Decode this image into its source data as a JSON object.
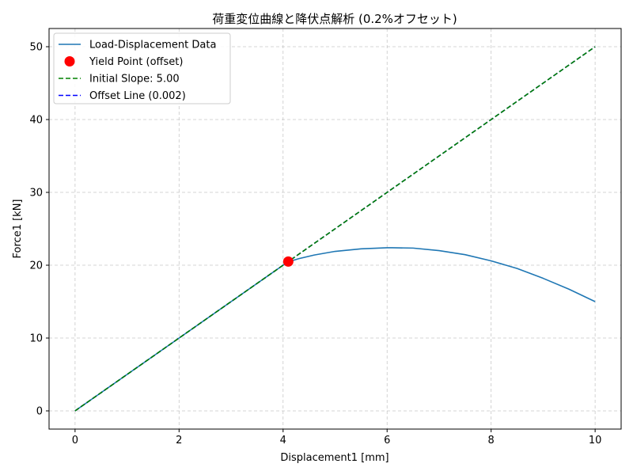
{
  "chart_data": {
    "type": "line",
    "title": "荷重変位曲線と降伏点解析 (0.2%オフセット)",
    "xlabel": "Displacement1 [mm]",
    "ylabel": "Force1 [kN]",
    "xlim": [
      -0.5,
      10.5
    ],
    "ylim": [
      -2.5,
      52.5
    ],
    "xticks": [
      0,
      2,
      4,
      6,
      8,
      10
    ],
    "yticks": [
      0,
      10,
      20,
      30,
      40,
      50
    ],
    "grid": true,
    "legend_position": "top-left",
    "series": [
      {
        "name": "Load-Displacement Data",
        "kind": "line",
        "color": "#1f77b4",
        "style": "solid",
        "x": [
          0,
          0.5,
          1,
          1.5,
          2,
          2.5,
          3,
          3.5,
          4,
          4.1,
          4.3,
          4.6,
          5,
          5.5,
          6,
          6.1,
          6.5,
          7,
          7.5,
          8,
          8.5,
          9,
          9.5,
          10
        ],
        "y": [
          0,
          2.5,
          5,
          7.5,
          10,
          12.5,
          15,
          17.5,
          20,
          20.45,
          20.9,
          21.4,
          21.9,
          22.25,
          22.4,
          22.4,
          22.35,
          22.0,
          21.45,
          20.6,
          19.55,
          18.2,
          16.7,
          15.0
        ]
      },
      {
        "name": "Yield Point (offset)",
        "kind": "point",
        "color": "#ff0000",
        "x": [
          4.1
        ],
        "y": [
          20.5
        ]
      },
      {
        "name": "Initial Slope: 5.00",
        "kind": "line",
        "color": "#008000",
        "style": "dashed",
        "x": [
          0,
          10
        ],
        "y": [
          0,
          50
        ]
      },
      {
        "name": "Offset Line (0.002)",
        "kind": "line",
        "color": "#0000ff",
        "style": "dashed",
        "x": [
          0,
          10
        ],
        "y": [
          0,
          50
        ]
      }
    ]
  }
}
